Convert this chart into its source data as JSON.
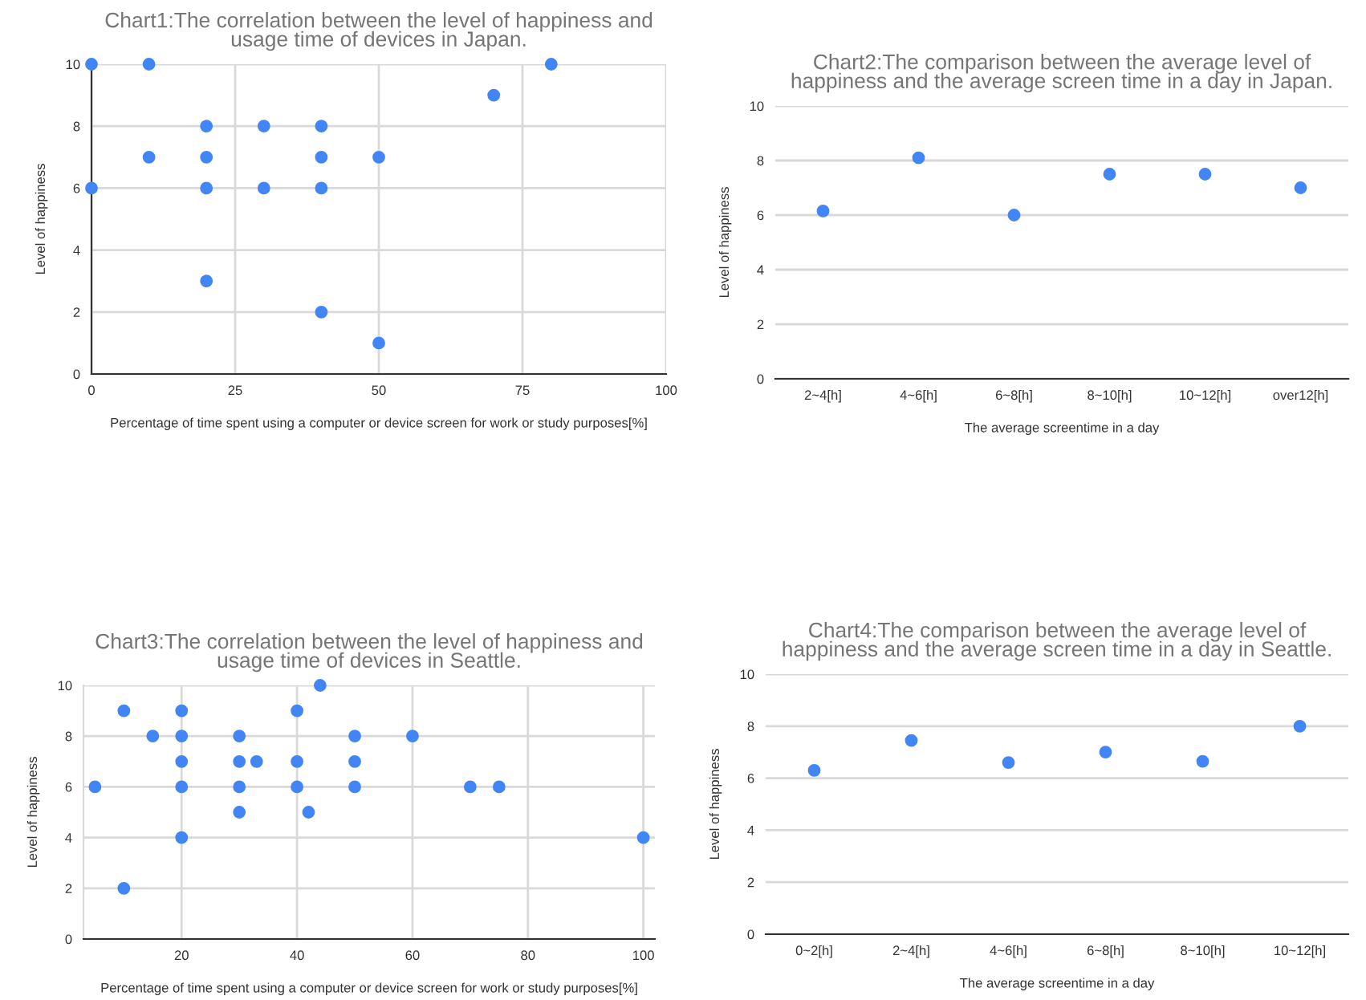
{
  "chart_data": [
    {
      "type": "scatter",
      "title": "Chart1:The correlation between the level of happiness and\nusage time of devices in Japan.",
      "xlabel": "Percentage of time spent using a computer or device screen for work or study purposes[%]",
      "ylabel": "Level of happiness",
      "color": "#4285f4",
      "marker": "circle",
      "grid": true,
      "x": [
        0,
        10,
        0,
        10,
        20,
        20,
        20,
        20,
        30,
        30,
        40,
        40,
        40,
        40,
        50,
        50,
        70,
        80
      ],
      "values": [
        10,
        10,
        6,
        7,
        8,
        7,
        6,
        3,
        8,
        6,
        8,
        7,
        6,
        2,
        7,
        1,
        9,
        10
      ],
      "xlim": [
        0,
        100
      ],
      "xticks": [
        0,
        25,
        50,
        75,
        100
      ],
      "ylim": [
        0,
        10
      ],
      "yticks": [
        0,
        2,
        4,
        6,
        8,
        10
      ]
    },
    {
      "type": "scatter",
      "title": "Chart2:The comparison between the average level of\nhappiness and the average screen time in a day in Japan.",
      "xlabel": "The average screentime in a day",
      "ylabel": "Level of happiness",
      "color": "#4285f4",
      "marker": "circle",
      "grid": "y",
      "categories": [
        "2~4[h]",
        "4~6[h]",
        "6~8[h]",
        "8~10[h]",
        "10~12[h]",
        "over12[h]"
      ],
      "values": [
        6.15,
        8.1,
        6.0,
        7.5,
        7.5,
        7.0
      ],
      "ylim": [
        0,
        10
      ],
      "yticks": [
        0,
        2,
        4,
        6,
        8,
        10
      ]
    },
    {
      "type": "scatter",
      "title": "Chart3:The correlation between the level of happiness and\nusage time of devices in Seattle.",
      "xlabel": "Percentage of time spent using a computer or device screen for work or study purposes[%]",
      "ylabel": "Level of happiness",
      "color": "#4285f4",
      "marker": "circle",
      "grid": true,
      "x": [
        5,
        10,
        10,
        15,
        20,
        20,
        20,
        20,
        20,
        30,
        30,
        30,
        30,
        33,
        40,
        40,
        40,
        42,
        44,
        50,
        50,
        50,
        60,
        70,
        75,
        100
      ],
      "values": [
        6,
        9,
        2,
        8,
        9,
        8,
        7,
        6,
        4,
        8,
        7,
        6,
        5,
        7,
        9,
        7,
        6,
        5,
        10,
        8,
        7,
        6,
        8,
        6,
        6,
        4
      ],
      "xlim": [
        3,
        102
      ],
      "xticks": [
        20,
        40,
        60,
        80,
        100
      ],
      "ylim": [
        0,
        10
      ],
      "yticks": [
        0,
        2,
        4,
        6,
        8,
        10
      ]
    },
    {
      "type": "scatter",
      "title": "Chart4:The comparison between the average level of\nhappiness and the average screen time in a day in Seattle.",
      "xlabel": "The average screentime in a day",
      "ylabel": "Level of happiness",
      "color": "#4285f4",
      "marker": "circle",
      "grid": "y",
      "categories": [
        "0~2[h]",
        "2~4[h]",
        "4~6[h]",
        "6~8[h]",
        "8~10[h]",
        "10~12[h]"
      ],
      "values": [
        6.3,
        7.45,
        6.6,
        7.0,
        6.65,
        8.0
      ],
      "ylim": [
        0,
        10
      ],
      "yticks": [
        0,
        2,
        4,
        6,
        8,
        10
      ]
    }
  ]
}
